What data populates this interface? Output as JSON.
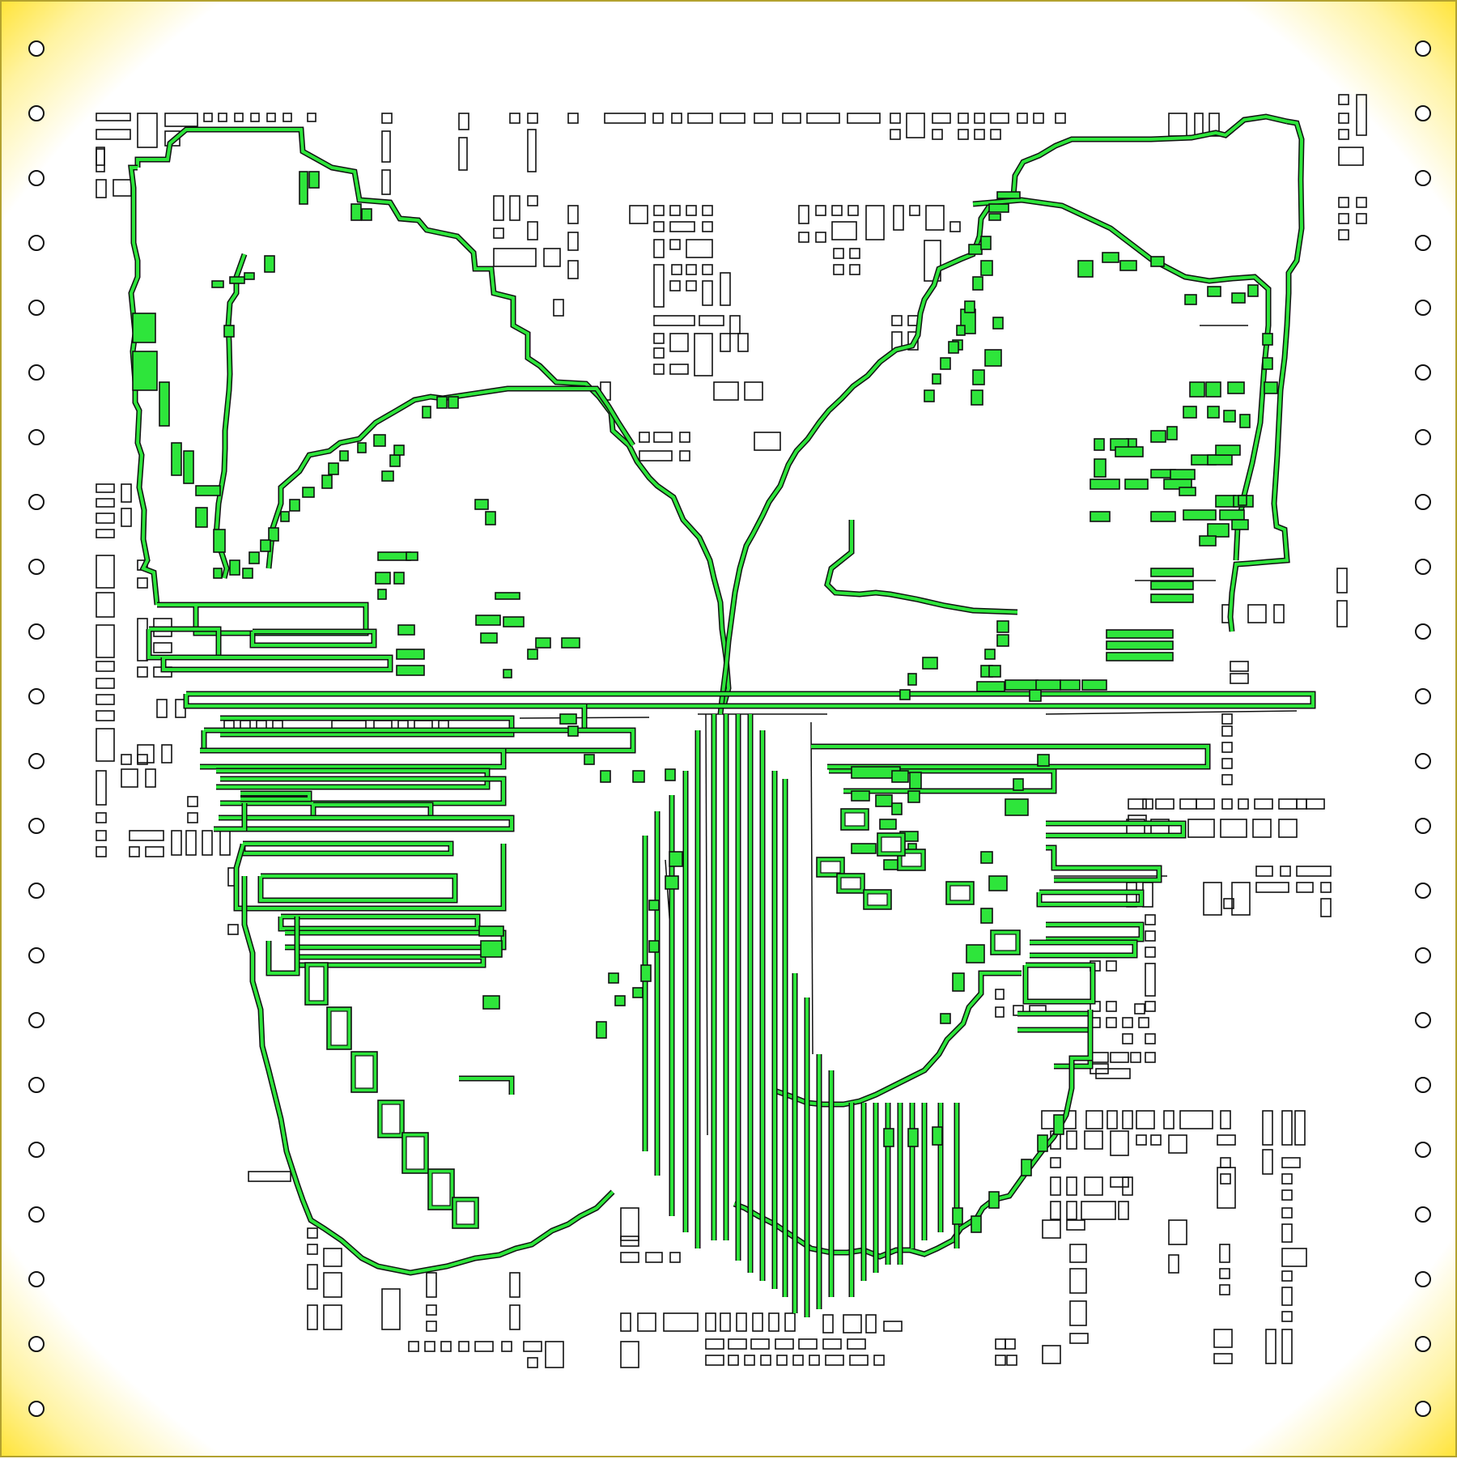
{
  "board": {
    "fill_color": "#2ee53b",
    "outline_color": "#111111",
    "frame_gradient_edge": "#ffe43a",
    "frame_border": "#b3a22f"
  },
  "icons": {
    "mount_hole": "small-open-circle",
    "component_pad": "open-rectangle",
    "trace": "green-outlined-polyline"
  }
}
